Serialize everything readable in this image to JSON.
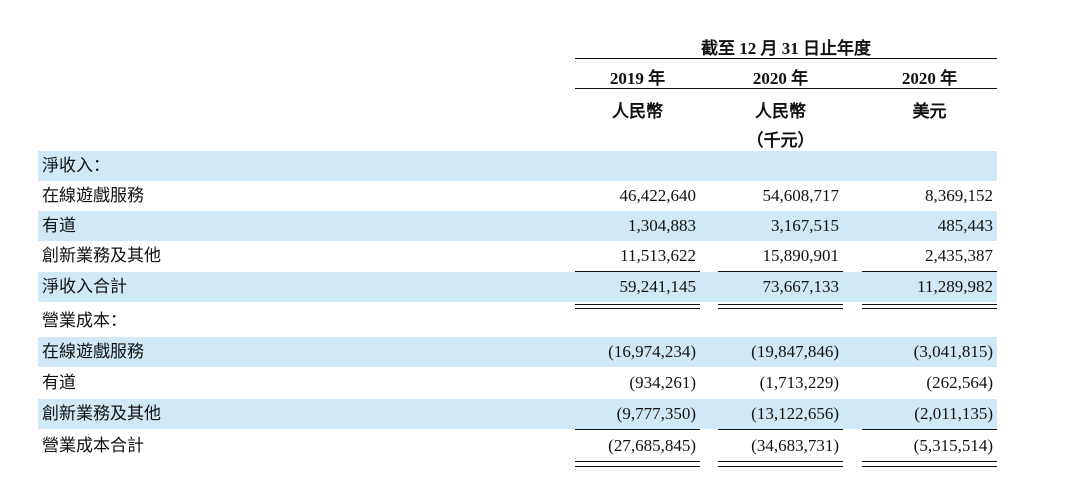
{
  "header": {
    "period": "截至 12 月 31 日止年度",
    "columns": [
      {
        "year": "2019 年",
        "currency": "人民幣"
      },
      {
        "year": "2020 年",
        "currency": "人民幣"
      },
      {
        "year": "2020 年",
        "currency": "美元"
      }
    ],
    "unit": "（千元）"
  },
  "rows": [
    {
      "label": "淨收入：",
      "values": []
    },
    {
      "label": "在線遊戲服務",
      "values": [
        "46,422,640",
        "54,608,717",
        "8,369,152"
      ]
    },
    {
      "label": "有道",
      "values": [
        "1,304,883",
        "3,167,515",
        "485,443"
      ]
    },
    {
      "label": "創新業務及其他",
      "values": [
        "11,513,622",
        "15,890,901",
        "2,435,387"
      ]
    },
    {
      "label": "淨收入合計",
      "values": [
        "59,241,145",
        "73,667,133",
        "11,289,982"
      ]
    },
    {
      "label": "營業成本：",
      "values": []
    },
    {
      "label": "在線遊戲服務",
      "values": [
        "(16,974,234)",
        "(19,847,846)",
        "(3,041,815)"
      ]
    },
    {
      "label": "有道",
      "values": [
        "(934,261)",
        "(1,713,229)",
        "(262,564)"
      ]
    },
    {
      "label": "創新業務及其他",
      "values": [
        "(9,777,350)",
        "(13,122,656)",
        "(2,011,135)"
      ]
    },
    {
      "label": "營業成本合計",
      "values": [
        "(27,685,845)",
        "(34,683,731)",
        "(5,315,514)"
      ]
    }
  ]
}
